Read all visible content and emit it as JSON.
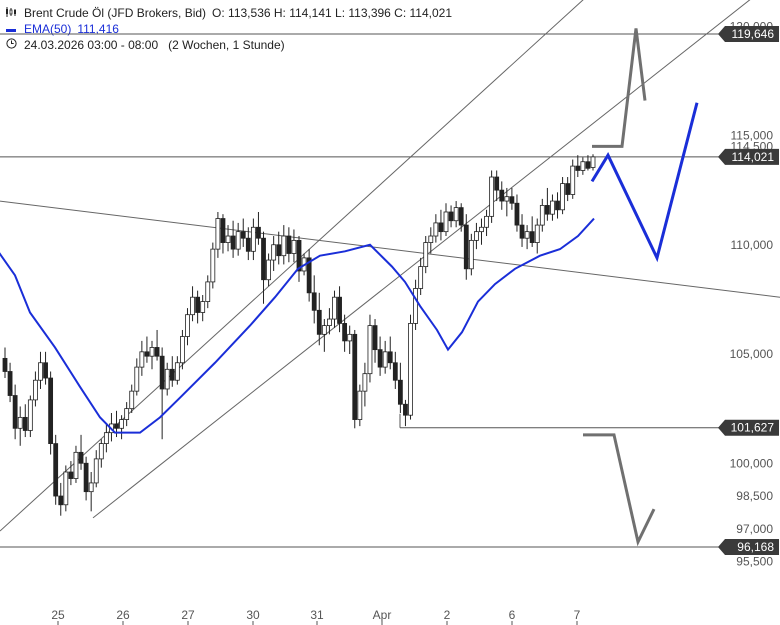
{
  "header": {
    "instrument": "Brent Crude Öl (JFD Brokers, Bid)",
    "ohlc": "O: 113,536   H: 114,141   L: 113,396   C: 114,021",
    "ema_label": "EMA(50)",
    "ema_value": "111,416",
    "period": "24.03.2026 03:00 - 08:00",
    "range": "(2 Wochen, 1 Stunde)",
    "icons": [
      "candlestick-icon",
      "ema-line-icon",
      "clock-icon"
    ]
  },
  "colors": {
    "ema": "#1a2ed8",
    "projection_blue": "#1a2ed8",
    "projection_gray": "#707070",
    "candles": "#222222",
    "lines": "#555555",
    "badge": "#3a3a3a"
  },
  "chart_data": {
    "type": "candlestick",
    "ylim": [
      95.3,
      120.5
    ],
    "y_ticks": [
      {
        "v": 120.0,
        "label": "120,000"
      },
      {
        "v": 115.0,
        "label": "115,000"
      },
      {
        "v": 114.5,
        "label": "114,500"
      },
      {
        "v": 110.0,
        "label": "110,000"
      },
      {
        "v": 105.0,
        "label": "105,000"
      },
      {
        "v": 100.0,
        "label": "100,000"
      },
      {
        "v": 98.5,
        "label": "98,500"
      },
      {
        "v": 97.0,
        "label": "97,000"
      },
      {
        "v": 95.5,
        "label": "95,500"
      }
    ],
    "x_ticks": [
      "25",
      "26",
      "27",
      "30",
      "31",
      "Apr",
      "2",
      "6",
      "7"
    ],
    "levels": [
      {
        "value": 119.646,
        "label": "119,646"
      },
      {
        "value": 114.021,
        "label": "114,021"
      },
      {
        "value": 101.627,
        "label": "101,627"
      },
      {
        "value": 96.168,
        "label": "96,168"
      }
    ],
    "candles": [
      [
        104.8,
        105.3,
        103.9,
        104.2
      ],
      [
        104.2,
        104.6,
        102.8,
        103.1
      ],
      [
        103.1,
        103.6,
        101.1,
        101.6
      ],
      [
        101.6,
        102.6,
        100.8,
        102.1
      ],
      [
        102.1,
        102.7,
        101.2,
        101.5
      ],
      [
        101.5,
        103.1,
        101.2,
        102.9
      ],
      [
        102.9,
        104.2,
        102.6,
        103.8
      ],
      [
        103.8,
        105.1,
        103.4,
        104.6
      ],
      [
        104.6,
        105.1,
        103.6,
        103.9
      ],
      [
        103.9,
        104.2,
        100.4,
        100.9
      ],
      [
        100.9,
        101.3,
        98.1,
        98.5
      ],
      [
        98.5,
        99.1,
        97.6,
        98.1
      ],
      [
        98.1,
        99.9,
        97.8,
        99.6
      ],
      [
        99.6,
        100.1,
        99.0,
        99.3
      ],
      [
        99.3,
        100.8,
        99.1,
        100.5
      ],
      [
        100.5,
        101.3,
        99.7,
        100.0
      ],
      [
        100.0,
        100.3,
        98.3,
        98.7
      ],
      [
        98.7,
        99.6,
        97.8,
        99.1
      ],
      [
        99.1,
        100.6,
        98.9,
        100.2
      ],
      [
        100.2,
        101.1,
        99.8,
        100.9
      ],
      [
        100.9,
        101.8,
        100.5,
        101.4
      ],
      [
        101.4,
        102.3,
        101.0,
        101.8
      ],
      [
        101.8,
        102.4,
        101.2,
        101.6
      ],
      [
        101.6,
        102.2,
        101.1,
        102.0
      ],
      [
        102.0,
        102.8,
        101.7,
        102.5
      ],
      [
        102.5,
        103.6,
        102.3,
        103.3
      ],
      [
        103.3,
        104.8,
        103.1,
        104.4
      ],
      [
        104.4,
        105.6,
        104.0,
        105.1
      ],
      [
        105.1,
        105.8,
        104.6,
        104.9
      ],
      [
        104.9,
        105.6,
        104.3,
        105.3
      ],
      [
        105.3,
        106.1,
        104.7,
        104.9
      ],
      [
        104.9,
        105.3,
        101.1,
        103.4
      ],
      [
        103.4,
        104.6,
        103.1,
        104.3
      ],
      [
        104.3,
        104.9,
        103.5,
        103.8
      ],
      [
        103.8,
        104.9,
        103.6,
        104.6
      ],
      [
        104.6,
        106.1,
        104.3,
        105.8
      ],
      [
        105.8,
        107.1,
        105.4,
        106.8
      ],
      [
        106.8,
        108.1,
        106.5,
        107.6
      ],
      [
        107.6,
        107.9,
        106.4,
        106.9
      ],
      [
        106.9,
        107.7,
        106.5,
        107.4
      ],
      [
        107.4,
        108.6,
        107.1,
        108.3
      ],
      [
        108.3,
        110.1,
        108.0,
        109.8
      ],
      [
        109.8,
        111.5,
        109.4,
        111.2
      ],
      [
        111.2,
        111.4,
        109.6,
        110.1
      ],
      [
        110.1,
        110.9,
        109.7,
        110.4
      ],
      [
        110.4,
        111.1,
        109.4,
        109.8
      ],
      [
        109.8,
        111.0,
        109.5,
        110.6
      ],
      [
        110.6,
        111.2,
        109.9,
        110.3
      ],
      [
        110.3,
        110.8,
        109.3,
        109.7
      ],
      [
        109.7,
        111.2,
        109.3,
        110.8
      ],
      [
        110.8,
        111.5,
        110.0,
        110.3
      ],
      [
        110.3,
        110.6,
        107.3,
        108.4
      ],
      [
        108.4,
        109.6,
        108.1,
        109.3
      ],
      [
        109.3,
        110.4,
        108.8,
        110.0
      ],
      [
        110.0,
        110.6,
        109.1,
        109.5
      ],
      [
        109.5,
        110.9,
        109.1,
        110.4
      ],
      [
        110.4,
        110.8,
        109.2,
        109.6
      ],
      [
        109.6,
        110.7,
        109.2,
        110.2
      ],
      [
        110.2,
        110.4,
        108.3,
        108.8
      ],
      [
        108.8,
        109.6,
        108.6,
        109.4
      ],
      [
        109.4,
        109.8,
        107.4,
        107.8
      ],
      [
        107.8,
        108.6,
        106.4,
        107.0
      ],
      [
        107.0,
        107.8,
        105.4,
        105.9
      ],
      [
        105.9,
        106.6,
        105.1,
        106.3
      ],
      [
        106.3,
        107.1,
        105.9,
        106.6
      ],
      [
        106.6,
        107.9,
        106.2,
        107.6
      ],
      [
        107.6,
        108.1,
        106.0,
        106.4
      ],
      [
        106.4,
        106.8,
        105.1,
        105.6
      ],
      [
        105.6,
        106.3,
        105.0,
        105.9
      ],
      [
        105.9,
        106.1,
        101.6,
        102.0
      ],
      [
        102.0,
        103.6,
        101.7,
        103.3
      ],
      [
        103.3,
        104.6,
        102.6,
        104.1
      ],
      [
        104.1,
        106.8,
        103.7,
        106.3
      ],
      [
        106.3,
        106.6,
        104.6,
        105.2
      ],
      [
        105.2,
        105.8,
        104.0,
        104.4
      ],
      [
        104.4,
        105.6,
        104.1,
        105.1
      ],
      [
        105.1,
        105.8,
        104.3,
        104.6
      ],
      [
        104.6,
        105.1,
        103.4,
        103.8
      ],
      [
        103.8,
        104.6,
        102.3,
        102.7
      ],
      [
        102.7,
        102.9,
        101.7,
        102.2
      ],
      [
        102.2,
        106.8,
        102.0,
        106.4
      ],
      [
        106.4,
        108.4,
        106.1,
        108.0
      ],
      [
        108.0,
        109.4,
        107.7,
        109.0
      ],
      [
        109.0,
        110.4,
        108.7,
        110.1
      ],
      [
        110.1,
        110.8,
        109.6,
        110.4
      ],
      [
        110.4,
        111.4,
        110.1,
        111.0
      ],
      [
        111.0,
        111.6,
        110.2,
        110.6
      ],
      [
        110.6,
        111.9,
        110.4,
        111.5
      ],
      [
        111.5,
        111.8,
        110.8,
        111.1
      ],
      [
        111.1,
        112.0,
        110.8,
        111.7
      ],
      [
        111.7,
        111.9,
        110.6,
        110.9
      ],
      [
        110.9,
        111.4,
        108.4,
        108.9
      ],
      [
        108.9,
        110.5,
        108.6,
        110.2
      ],
      [
        110.2,
        111.0,
        109.8,
        110.6
      ],
      [
        110.6,
        111.2,
        110.0,
        110.8
      ],
      [
        110.8,
        111.6,
        110.4,
        111.3
      ],
      [
        111.3,
        113.4,
        111.0,
        113.1
      ],
      [
        113.1,
        113.4,
        112.0,
        112.5
      ],
      [
        112.5,
        112.9,
        111.6,
        112.0
      ],
      [
        112.0,
        112.6,
        111.3,
        112.2
      ],
      [
        112.2,
        112.6,
        111.6,
        111.9
      ],
      [
        111.9,
        112.3,
        110.6,
        110.9
      ],
      [
        110.9,
        111.4,
        109.9,
        110.3
      ],
      [
        110.3,
        110.9,
        109.8,
        110.6
      ],
      [
        110.6,
        111.3,
        109.9,
        110.1
      ],
      [
        110.1,
        111.2,
        109.6,
        110.9
      ],
      [
        110.9,
        112.1,
        110.6,
        111.8
      ],
      [
        111.8,
        112.6,
        111.1,
        111.4
      ],
      [
        111.4,
        112.3,
        111.1,
        112.0
      ],
      [
        112.0,
        112.4,
        111.2,
        111.6
      ],
      [
        111.6,
        113.1,
        111.4,
        112.8
      ],
      [
        112.8,
        113.1,
        112.0,
        112.3
      ],
      [
        112.3,
        113.9,
        112.1,
        113.6
      ],
      [
        113.6,
        114.1,
        113.1,
        113.4
      ],
      [
        113.4,
        114.0,
        113.2,
        113.8
      ],
      [
        113.8,
        114.1,
        113.4,
        113.5
      ],
      [
        113.536,
        114.141,
        113.396,
        114.021
      ]
    ],
    "ema50": [
      [
        -5,
        109.9
      ],
      [
        15,
        108.6
      ],
      [
        30,
        106.9
      ],
      [
        55,
        105.3
      ],
      [
        80,
        103.5
      ],
      [
        100,
        102.1
      ],
      [
        115,
        101.4
      ],
      [
        140,
        101.4
      ],
      [
        160,
        102.1
      ],
      [
        180,
        103.0
      ],
      [
        215,
        104.6
      ],
      [
        250,
        106.3
      ],
      [
        275,
        107.6
      ],
      [
        298,
        108.9
      ],
      [
        320,
        109.5
      ],
      [
        345,
        109.7
      ],
      [
        370,
        110.0
      ],
      [
        392,
        109.0
      ],
      [
        405,
        108.3
      ],
      [
        420,
        107.2
      ],
      [
        437,
        106.1
      ],
      [
        448,
        105.2
      ],
      [
        462,
        106.0
      ],
      [
        478,
        107.4
      ],
      [
        495,
        108.2
      ],
      [
        515,
        108.9
      ],
      [
        540,
        109.5
      ],
      [
        560,
        109.8
      ],
      [
        578,
        110.4
      ],
      [
        594,
        111.2
      ]
    ],
    "trendlines": [
      [
        0,
        112.0,
        780,
        107.6
      ],
      [
        0,
        96.9,
        710,
        126.5
      ],
      [
        93,
        97.5,
        780,
        122.3
      ]
    ],
    "projection_blue": [
      [
        592,
        112.9
      ],
      [
        608,
        114.1
      ],
      [
        657,
        109.4
      ],
      [
        697,
        116.5
      ]
    ],
    "projection_gray_up": [
      [
        592,
        114.5
      ],
      [
        622,
        114.5
      ],
      [
        636,
        119.9
      ],
      [
        645,
        116.6
      ]
    ],
    "projection_gray_down": [
      [
        583,
        101.3
      ],
      [
        614,
        101.3
      ],
      [
        638,
        96.4
      ],
      [
        654,
        97.9
      ]
    ]
  }
}
